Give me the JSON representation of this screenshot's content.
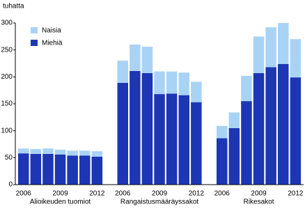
{
  "chart_data": {
    "type": "stacked-bar",
    "y_label": "tuhatta",
    "categories": [
      "2006",
      null,
      null,
      "2009",
      null,
      null,
      "2012",
      "2006",
      null,
      null,
      "2009",
      null,
      null,
      "2012",
      "2006",
      null,
      null,
      "2009",
      null,
      null,
      "2012"
    ],
    "group_labels": [
      "Alioikeuden tuomiot",
      "Rangaistusmääräyssakot",
      "Rikesakot"
    ],
    "series": [
      {
        "name": "Miehiä",
        "color": "#1c36b4",
        "values": [
          58,
          57,
          57,
          56,
          54,
          54,
          52,
          189,
          211,
          207,
          168,
          169,
          166,
          153,
          86,
          105,
          155,
          207,
          218,
          224,
          199
        ]
      },
      {
        "name": "Naisia",
        "color": "#a9d3f5",
        "values": [
          9,
          9,
          10,
          9,
          9,
          9,
          10,
          41,
          49,
          49,
          42,
          41,
          42,
          38,
          23,
          29,
          47,
          68,
          74,
          76,
          71
        ]
      }
    ],
    "ylim": [
      0,
      300
    ],
    "yticks": [
      0,
      50,
      100,
      150,
      200,
      250,
      300
    ],
    "grid": false,
    "legend": "upper-left"
  }
}
